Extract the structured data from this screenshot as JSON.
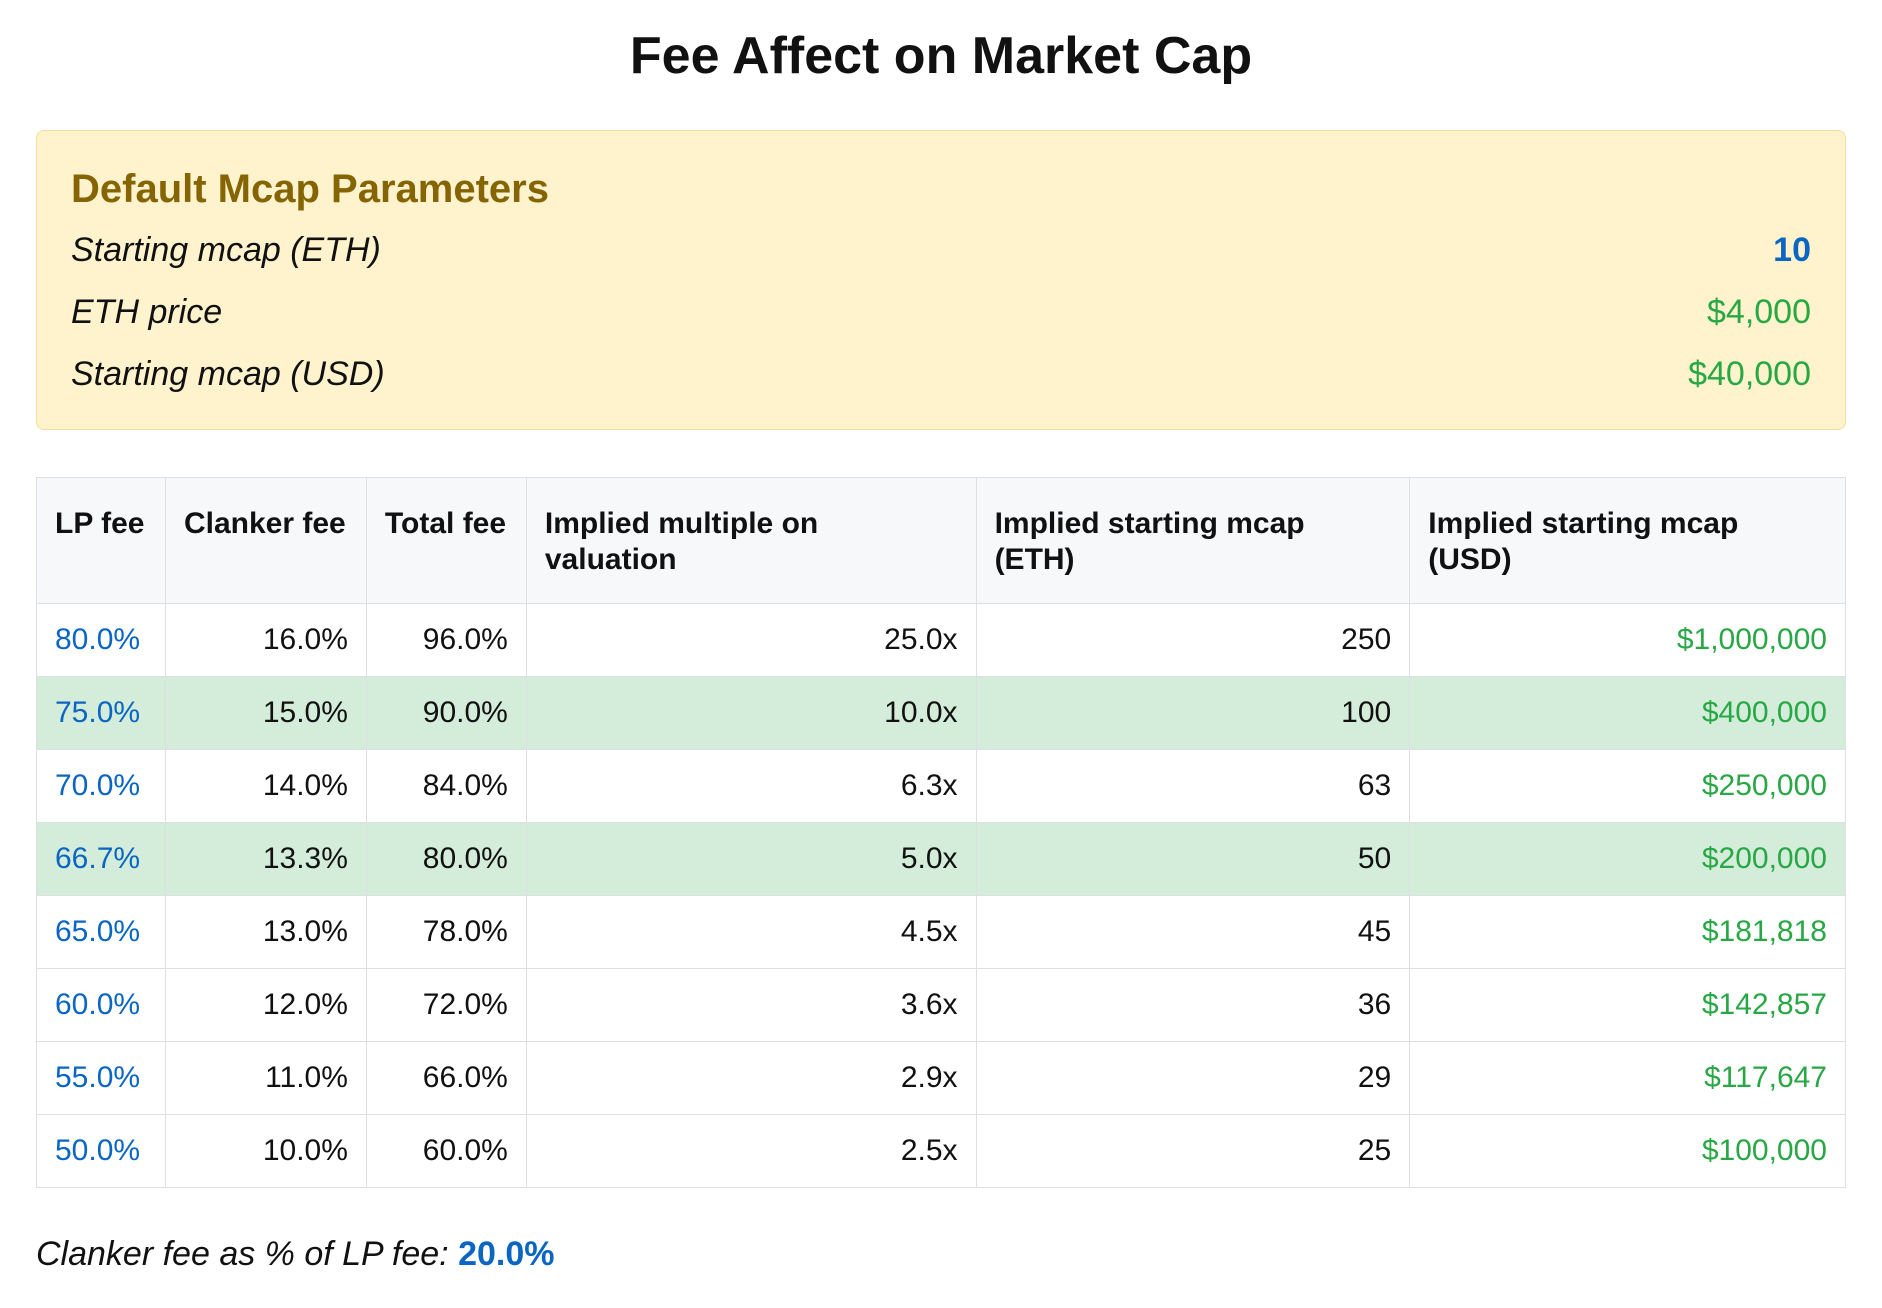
{
  "page": {
    "title": "Fee Affect on Market Cap"
  },
  "params": {
    "heading": "Default Mcap Parameters",
    "rows": [
      {
        "label": "Starting mcap (ETH)",
        "value": "10"
      },
      {
        "label": "ETH price",
        "value": "$4,000"
      },
      {
        "label": "Starting mcap (USD)",
        "value": "$40,000"
      }
    ]
  },
  "table": {
    "headers": [
      "LP fee",
      "Clanker fee",
      "Total fee",
      "Implied multiple on valuation",
      "Implied starting mcap (ETH)",
      "Implied starting mcap (USD)"
    ],
    "rows": [
      {
        "lp": "80.0%",
        "clanker": "16.0%",
        "total": "96.0%",
        "multiple": "25.0x",
        "mcap_eth": "250",
        "mcap_usd": "$1,000,000",
        "highlight": false
      },
      {
        "lp": "75.0%",
        "clanker": "15.0%",
        "total": "90.0%",
        "multiple": "10.0x",
        "mcap_eth": "100",
        "mcap_usd": "$400,000",
        "highlight": true
      },
      {
        "lp": "70.0%",
        "clanker": "14.0%",
        "total": "84.0%",
        "multiple": "6.3x",
        "mcap_eth": "63",
        "mcap_usd": "$250,000",
        "highlight": false
      },
      {
        "lp": "66.7%",
        "clanker": "13.3%",
        "total": "80.0%",
        "multiple": "5.0x",
        "mcap_eth": "50",
        "mcap_usd": "$200,000",
        "highlight": true
      },
      {
        "lp": "65.0%",
        "clanker": "13.0%",
        "total": "78.0%",
        "multiple": "4.5x",
        "mcap_eth": "45",
        "mcap_usd": "$181,818",
        "highlight": false
      },
      {
        "lp": "60.0%",
        "clanker": "12.0%",
        "total": "72.0%",
        "multiple": "3.6x",
        "mcap_eth": "36",
        "mcap_usd": "$142,857",
        "highlight": false
      },
      {
        "lp": "55.0%",
        "clanker": "11.0%",
        "total": "66.0%",
        "multiple": "2.9x",
        "mcap_eth": "29",
        "mcap_usd": "$117,647",
        "highlight": false
      },
      {
        "lp": "50.0%",
        "clanker": "10.0%",
        "total": "60.0%",
        "multiple": "2.5x",
        "mcap_eth": "25",
        "mcap_usd": "$100,000",
        "highlight": false
      }
    ]
  },
  "footer": {
    "label": "Clanker fee as % of LP fee:",
    "value": "20.0%"
  },
  "colors": {
    "accent_blue": "#0a66c2",
    "money_green": "#28a745",
    "param_heading": "#856404",
    "param_bg": "#fff3cd",
    "highlight_row": "#d4edda"
  }
}
